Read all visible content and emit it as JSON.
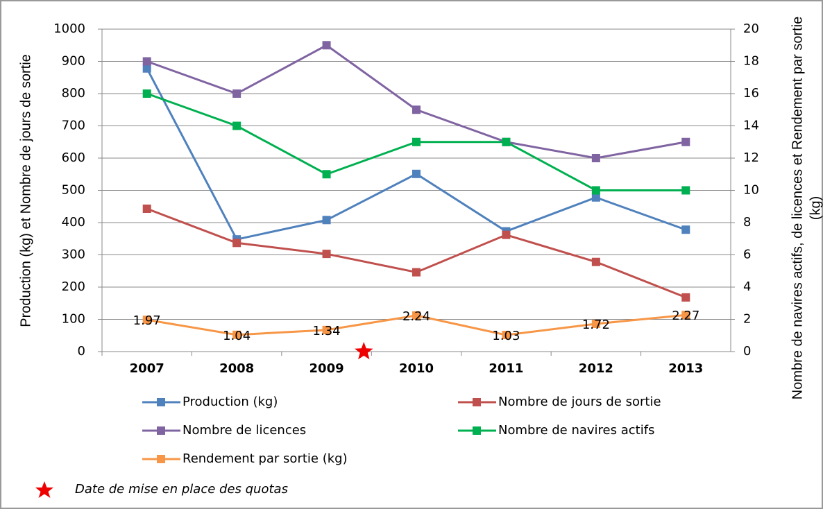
{
  "chart_data": {
    "type": "line",
    "categories": [
      "2007",
      "2008",
      "2009",
      "2010",
      "2011",
      "2012",
      "2013"
    ],
    "y_label": "Production (kg) et Nombre de jours de sortie",
    "y2_label": [
      "Nombre de navires actifs, de licences et Rendement par sortie",
      "(kg)"
    ],
    "ylim": [
      0,
      1000
    ],
    "yticks": [
      0,
      100,
      200,
      300,
      400,
      500,
      600,
      700,
      800,
      900,
      1000
    ],
    "y2lim": [
      0,
      20
    ],
    "y2ticks": [
      0,
      2,
      4,
      6,
      8,
      10,
      12,
      14,
      16,
      18,
      20
    ],
    "grid": true,
    "series": [
      {
        "name": "Production (kg)",
        "color": "#4f81bd",
        "values": [
          878,
          348,
          408,
          551,
          373,
          478,
          378
        ]
      },
      {
        "name": "Nombre de jours de sortie",
        "color": "#c0504d",
        "values": [
          443,
          337,
          303,
          246,
          362,
          278,
          168
        ]
      },
      {
        "name": "Nombre de licences",
        "color": "#8064a2",
        "axis": "y2",
        "values": [
          18,
          16,
          19,
          15,
          13,
          12,
          13
        ]
      },
      {
        "name": "Nombre de navires actifs",
        "color": "#00b050",
        "axis": "y2",
        "values": [
          16,
          14,
          11,
          13,
          13,
          10,
          10
        ]
      },
      {
        "name": "Rendement par sortie (kg)",
        "color": "#f79646",
        "axis": "y2",
        "show_labels": true,
        "values": [
          1.97,
          1.04,
          1.34,
          2.24,
          1.03,
          1.72,
          2.27
        ]
      }
    ],
    "annotation": "Date de mise en place des quotas"
  }
}
